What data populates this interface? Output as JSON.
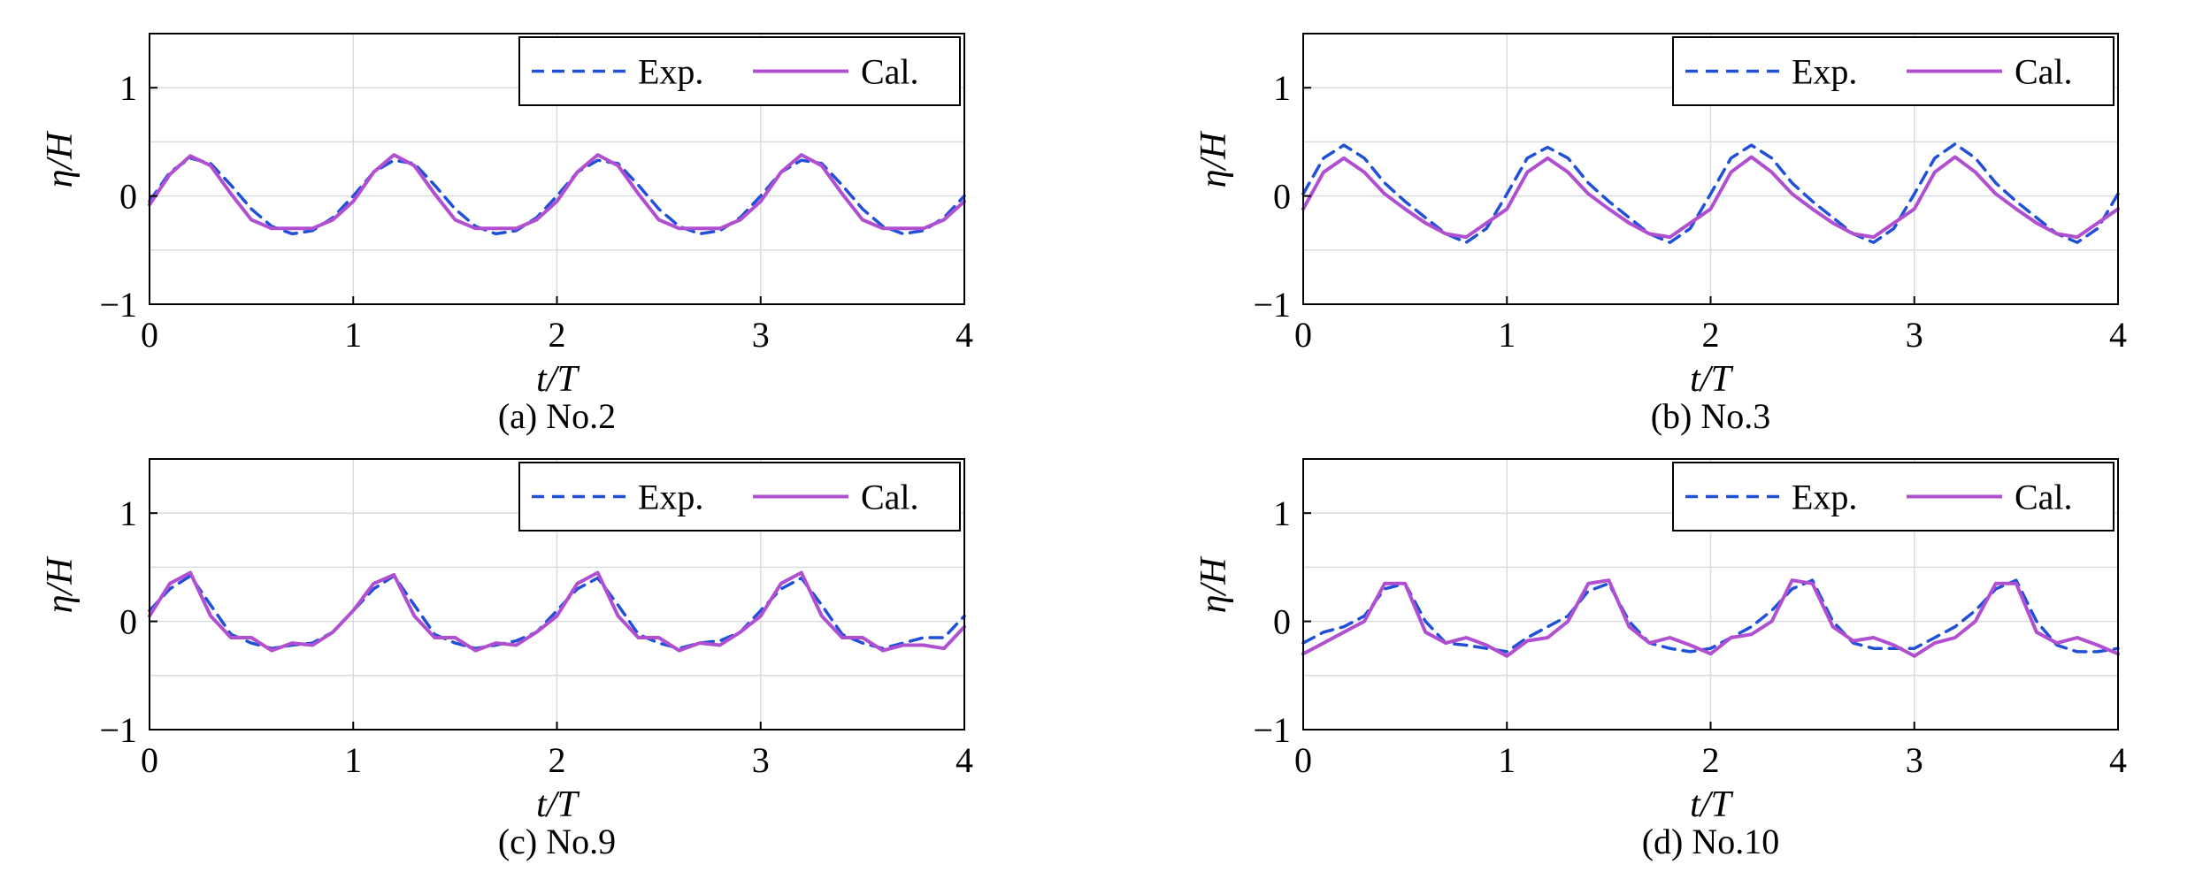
{
  "chart_data": [
    {
      "type": "line",
      "caption": "(a) No.2",
      "xlabel": "t/T",
      "ylabel": "η/H",
      "xlim": [
        0,
        4
      ],
      "ylim": [
        -1,
        1.5
      ],
      "xticks": [
        "0",
        "1",
        "2",
        "3",
        "4"
      ],
      "yticks": [
        "−1",
        "0",
        "1"
      ],
      "grid": true,
      "legend_position": "top-right",
      "series": [
        {
          "name": "Exp.",
          "style": "dashed",
          "color": "#2050d8",
          "x": [
            0,
            0.1,
            0.2,
            0.3,
            0.4,
            0.5,
            0.6,
            0.7,
            0.8,
            0.9,
            1.0,
            1.1,
            1.2,
            1.3,
            1.4,
            1.5,
            1.6,
            1.7,
            1.8,
            1.9,
            2.0,
            2.1,
            2.2,
            2.3,
            2.4,
            2.5,
            2.6,
            2.7,
            2.8,
            2.9,
            3.0,
            3.1,
            3.2,
            3.3,
            3.4,
            3.5,
            3.6,
            3.7,
            3.8,
            3.9,
            4.0
          ],
          "y": [
            -0.05,
            0.22,
            0.35,
            0.3,
            0.1,
            -0.12,
            -0.28,
            -0.35,
            -0.32,
            -0.2,
            0.0,
            0.22,
            0.33,
            0.3,
            0.1,
            -0.12,
            -0.28,
            -0.35,
            -0.32,
            -0.2,
            0.0,
            0.22,
            0.33,
            0.3,
            0.1,
            -0.12,
            -0.28,
            -0.35,
            -0.32,
            -0.2,
            0.0,
            0.22,
            0.33,
            0.3,
            0.1,
            -0.12,
            -0.28,
            -0.35,
            -0.32,
            -0.2,
            0.0
          ]
        },
        {
          "name": "Cal.",
          "style": "solid",
          "color": "#b050d0",
          "x": [
            0,
            0.1,
            0.2,
            0.3,
            0.4,
            0.5,
            0.6,
            0.7,
            0.8,
            0.9,
            1.0,
            1.1,
            1.2,
            1.3,
            1.4,
            1.5,
            1.6,
            1.7,
            1.8,
            1.9,
            2.0,
            2.1,
            2.2,
            2.3,
            2.4,
            2.5,
            2.6,
            2.7,
            2.8,
            2.9,
            3.0,
            3.1,
            3.2,
            3.3,
            3.4,
            3.5,
            3.6,
            3.7,
            3.8,
            3.9,
            4.0
          ],
          "y": [
            -0.08,
            0.2,
            0.37,
            0.28,
            0.02,
            -0.22,
            -0.3,
            -0.3,
            -0.3,
            -0.22,
            -0.05,
            0.22,
            0.38,
            0.28,
            0.02,
            -0.22,
            -0.3,
            -0.3,
            -0.3,
            -0.22,
            -0.05,
            0.22,
            0.38,
            0.28,
            0.02,
            -0.22,
            -0.3,
            -0.3,
            -0.3,
            -0.22,
            -0.05,
            0.22,
            0.38,
            0.28,
            0.02,
            -0.22,
            -0.3,
            -0.3,
            -0.3,
            -0.22,
            -0.05
          ]
        }
      ]
    },
    {
      "type": "line",
      "caption": "(b) No.3",
      "xlabel": "t/T",
      "ylabel": "η/H",
      "xlim": [
        0,
        4
      ],
      "ylim": [
        -1,
        1.5
      ],
      "xticks": [
        "0",
        "1",
        "2",
        "3",
        "4"
      ],
      "yticks": [
        "−1",
        "0",
        "1"
      ],
      "grid": true,
      "legend_position": "top-right",
      "series": [
        {
          "name": "Exp.",
          "style": "dashed",
          "color": "#2050d8",
          "x": [
            0,
            0.1,
            0.2,
            0.3,
            0.4,
            0.5,
            0.6,
            0.7,
            0.8,
            0.9,
            1.0,
            1.1,
            1.2,
            1.3,
            1.4,
            1.5,
            1.6,
            1.7,
            1.8,
            1.9,
            2.0,
            2.1,
            2.2,
            2.3,
            2.4,
            2.5,
            2.6,
            2.7,
            2.8,
            2.9,
            3.0,
            3.1,
            3.2,
            3.3,
            3.4,
            3.5,
            3.6,
            3.7,
            3.8,
            3.9,
            4.0
          ],
          "y": [
            0.02,
            0.35,
            0.47,
            0.35,
            0.12,
            -0.05,
            -0.2,
            -0.35,
            -0.43,
            -0.3,
            0.02,
            0.35,
            0.45,
            0.35,
            0.12,
            -0.05,
            -0.2,
            -0.35,
            -0.43,
            -0.3,
            0.02,
            0.35,
            0.47,
            0.35,
            0.12,
            -0.05,
            -0.2,
            -0.35,
            -0.43,
            -0.3,
            0.02,
            0.35,
            0.48,
            0.35,
            0.12,
            -0.05,
            -0.2,
            -0.35,
            -0.43,
            -0.3,
            0.02
          ]
        },
        {
          "name": "Cal.",
          "style": "solid",
          "color": "#b050d0",
          "x": [
            0,
            0.1,
            0.2,
            0.3,
            0.4,
            0.5,
            0.6,
            0.7,
            0.8,
            0.9,
            1.0,
            1.1,
            1.2,
            1.3,
            1.4,
            1.5,
            1.6,
            1.7,
            1.8,
            1.9,
            2.0,
            2.1,
            2.2,
            2.3,
            2.4,
            2.5,
            2.6,
            2.7,
            2.8,
            2.9,
            3.0,
            3.1,
            3.2,
            3.3,
            3.4,
            3.5,
            3.6,
            3.7,
            3.8,
            3.9,
            4.0
          ],
          "y": [
            -0.12,
            0.22,
            0.35,
            0.22,
            0.02,
            -0.12,
            -0.25,
            -0.35,
            -0.38,
            -0.25,
            -0.12,
            0.22,
            0.35,
            0.22,
            0.02,
            -0.12,
            -0.25,
            -0.35,
            -0.38,
            -0.25,
            -0.12,
            0.22,
            0.36,
            0.22,
            0.02,
            -0.12,
            -0.25,
            -0.35,
            -0.38,
            -0.25,
            -0.12,
            0.22,
            0.36,
            0.22,
            0.02,
            -0.12,
            -0.25,
            -0.35,
            -0.38,
            -0.25,
            -0.12
          ]
        }
      ]
    },
    {
      "type": "line",
      "caption": "(c) No.9",
      "xlabel": "t/T",
      "ylabel": "η/H",
      "xlim": [
        0,
        4
      ],
      "ylim": [
        -1,
        1.5
      ],
      "xticks": [
        "0",
        "1",
        "2",
        "3",
        "4"
      ],
      "yticks": [
        "−1",
        "0",
        "1"
      ],
      "grid": true,
      "legend_position": "top-right",
      "series": [
        {
          "name": "Exp.",
          "style": "dashed",
          "color": "#2050d8",
          "x": [
            0,
            0.1,
            0.2,
            0.3,
            0.4,
            0.5,
            0.6,
            0.7,
            0.8,
            0.9,
            1.0,
            1.1,
            1.2,
            1.3,
            1.4,
            1.5,
            1.6,
            1.7,
            1.8,
            1.9,
            2.0,
            2.1,
            2.2,
            2.3,
            2.4,
            2.5,
            2.6,
            2.7,
            2.8,
            2.9,
            3.0,
            3.1,
            3.2,
            3.3,
            3.4,
            3.5,
            3.6,
            3.7,
            3.8,
            3.9,
            4.0
          ],
          "y": [
            0.1,
            0.3,
            0.42,
            0.15,
            -0.12,
            -0.2,
            -0.25,
            -0.22,
            -0.2,
            -0.1,
            0.1,
            0.3,
            0.42,
            0.15,
            -0.12,
            -0.2,
            -0.25,
            -0.22,
            -0.18,
            -0.1,
            0.1,
            0.3,
            0.4,
            0.15,
            -0.12,
            -0.2,
            -0.25,
            -0.2,
            -0.18,
            -0.1,
            0.1,
            0.3,
            0.4,
            0.15,
            -0.12,
            -0.2,
            -0.25,
            -0.2,
            -0.15,
            -0.15,
            0.05
          ]
        },
        {
          "name": "Cal.",
          "style": "solid",
          "color": "#b050d0",
          "x": [
            0,
            0.1,
            0.2,
            0.3,
            0.4,
            0.5,
            0.6,
            0.7,
            0.8,
            0.9,
            1.0,
            1.1,
            1.2,
            1.3,
            1.4,
            1.5,
            1.6,
            1.7,
            1.8,
            1.9,
            2.0,
            2.1,
            2.2,
            2.3,
            2.4,
            2.5,
            2.6,
            2.7,
            2.8,
            2.9,
            3.0,
            3.1,
            3.2,
            3.3,
            3.4,
            3.5,
            3.6,
            3.7,
            3.8,
            3.9,
            4.0
          ],
          "y": [
            0.05,
            0.35,
            0.45,
            0.05,
            -0.15,
            -0.15,
            -0.27,
            -0.2,
            -0.22,
            -0.1,
            0.1,
            0.35,
            0.43,
            0.05,
            -0.15,
            -0.15,
            -0.27,
            -0.2,
            -0.22,
            -0.1,
            0.05,
            0.35,
            0.45,
            0.05,
            -0.15,
            -0.15,
            -0.27,
            -0.2,
            -0.22,
            -0.1,
            0.05,
            0.35,
            0.45,
            0.05,
            -0.15,
            -0.15,
            -0.27,
            -0.22,
            -0.22,
            -0.25,
            -0.05
          ]
        }
      ]
    },
    {
      "type": "line",
      "caption": "(d) No.10",
      "xlabel": "t/T",
      "ylabel": "η/H",
      "xlim": [
        0,
        4
      ],
      "ylim": [
        -1,
        1.5
      ],
      "xticks": [
        "0",
        "1",
        "2",
        "3",
        "4"
      ],
      "yticks": [
        "−1",
        "0",
        "1"
      ],
      "grid": true,
      "legend_position": "top-right",
      "series": [
        {
          "name": "Exp.",
          "style": "dashed",
          "color": "#2050d8",
          "x": [
            0,
            0.1,
            0.2,
            0.3,
            0.4,
            0.5,
            0.6,
            0.7,
            0.8,
            0.9,
            1.0,
            1.1,
            1.2,
            1.3,
            1.4,
            1.5,
            1.6,
            1.7,
            1.8,
            1.9,
            2.0,
            2.1,
            2.2,
            2.3,
            2.4,
            2.5,
            2.6,
            2.7,
            2.8,
            2.9,
            3.0,
            3.1,
            3.2,
            3.3,
            3.4,
            3.5,
            3.6,
            3.7,
            3.8,
            3.9,
            4.0
          ],
          "y": [
            -0.2,
            -0.1,
            -0.05,
            0.05,
            0.3,
            0.35,
            0.0,
            -0.2,
            -0.22,
            -0.25,
            -0.28,
            -0.15,
            -0.05,
            0.05,
            0.28,
            0.35,
            0.0,
            -0.2,
            -0.25,
            -0.28,
            -0.25,
            -0.15,
            -0.05,
            0.1,
            0.3,
            0.38,
            0.0,
            -0.2,
            -0.25,
            -0.25,
            -0.25,
            -0.15,
            -0.05,
            0.1,
            0.3,
            0.38,
            0.0,
            -0.22,
            -0.28,
            -0.28,
            -0.25
          ]
        },
        {
          "name": "Cal.",
          "style": "solid",
          "color": "#b050d0",
          "x": [
            0,
            0.1,
            0.2,
            0.3,
            0.4,
            0.5,
            0.6,
            0.7,
            0.8,
            0.9,
            1.0,
            1.1,
            1.2,
            1.3,
            1.4,
            1.5,
            1.6,
            1.7,
            1.8,
            1.9,
            2.0,
            2.1,
            2.2,
            2.3,
            2.4,
            2.5,
            2.6,
            2.7,
            2.8,
            2.9,
            3.0,
            3.1,
            3.2,
            3.3,
            3.4,
            3.5,
            3.6,
            3.7,
            3.8,
            3.9,
            4.0
          ],
          "y": [
            -0.3,
            -0.2,
            -0.1,
            0.0,
            0.35,
            0.35,
            -0.1,
            -0.2,
            -0.15,
            -0.22,
            -0.32,
            -0.18,
            -0.15,
            0.0,
            0.35,
            0.38,
            -0.05,
            -0.2,
            -0.15,
            -0.22,
            -0.3,
            -0.15,
            -0.12,
            0.0,
            0.38,
            0.35,
            -0.05,
            -0.18,
            -0.15,
            -0.22,
            -0.32,
            -0.2,
            -0.15,
            0.0,
            0.35,
            0.35,
            -0.1,
            -0.2,
            -0.15,
            -0.22,
            -0.3
          ]
        }
      ]
    }
  ]
}
